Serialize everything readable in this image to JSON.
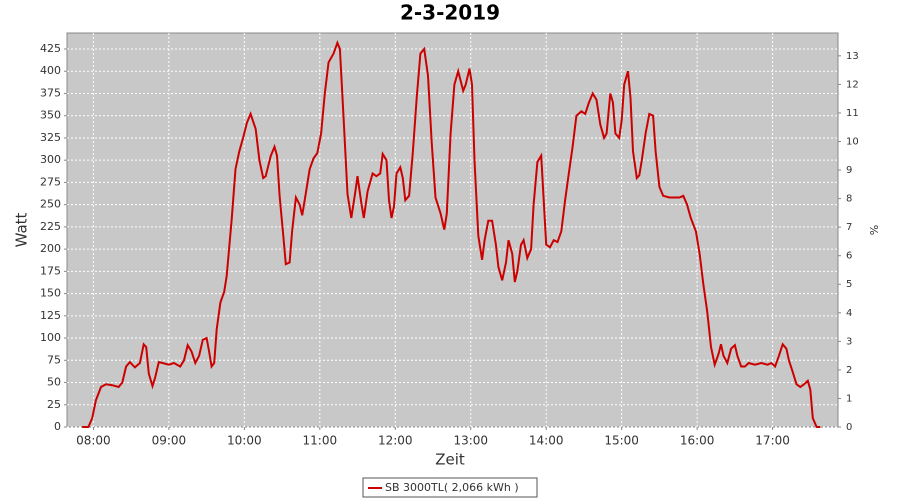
{
  "chart_data": {
    "type": "line",
    "title": "2-3-2019",
    "x_label": "Zeit",
    "y_label": "Watt",
    "y2_label": "%",
    "x": [
      "07:51",
      "07:56",
      "07:59",
      "08:02",
      "08:06",
      "08:10",
      "08:15",
      "08:20",
      "08:23",
      "08:26",
      "08:29",
      "08:33",
      "08:37",
      "08:40",
      "08:42",
      "08:44",
      "08:47",
      "08:49",
      "08:52",
      "08:55",
      "09:00",
      "09:04",
      "09:09",
      "09:12",
      "09:15",
      "09:18",
      "09:21",
      "09:24",
      "09:27",
      "09:30",
      "09:32",
      "09:34",
      "09:36",
      "09:38",
      "09:41",
      "09:44",
      "09:46",
      "09:50",
      "09:53",
      "09:56",
      "09:59",
      "10:02",
      "10:05",
      "10:09",
      "10:12",
      "10:15",
      "10:17",
      "10:21",
      "10:24",
      "10:26",
      "10:28",
      "10:31",
      "10:33",
      "10:36",
      "10:38",
      "10:41",
      "10:44",
      "10:46",
      "10:48",
      "10:52",
      "10:55",
      "10:58",
      "11:01",
      "11:04",
      "11:07",
      "11:11",
      "11:14",
      "11:16",
      "11:19",
      "11:22",
      "11:25",
      "11:28",
      "11:30",
      "11:33",
      "11:35",
      "11:38",
      "11:42",
      "11:45",
      "11:48",
      "11:50",
      "11:53",
      "11:55",
      "11:57",
      "11:59",
      "12:01",
      "12:04",
      "12:06",
      "12:08",
      "12:11",
      "12:14",
      "12:17",
      "12:20",
      "12:23",
      "12:26",
      "12:29",
      "12:32",
      "12:36",
      "12:39",
      "12:41",
      "12:44",
      "12:47",
      "12:50",
      "12:54",
      "12:56",
      "12:59",
      "13:01",
      "13:03",
      "13:06",
      "13:09",
      "13:11",
      "13:14",
      "13:17",
      "13:20",
      "13:22",
      "13:25",
      "13:28",
      "13:30",
      "13:33",
      "13:35",
      "13:37",
      "13:40",
      "13:42",
      "13:45",
      "13:48",
      "13:50",
      "13:53",
      "13:56",
      "13:58",
      "14:00",
      "14:03",
      "14:06",
      "14:09",
      "14:12",
      "14:15",
      "14:18",
      "14:21",
      "14:24",
      "14:28",
      "14:31",
      "14:34",
      "14:37",
      "14:40",
      "14:43",
      "14:46",
      "14:48",
      "14:51",
      "14:53",
      "14:55",
      "14:58",
      "15:00",
      "15:02",
      "15:05",
      "15:07",
      "15:09",
      "15:12",
      "15:14",
      "15:16",
      "15:19",
      "15:22",
      "15:25",
      "15:27",
      "15:30",
      "15:33",
      "15:38",
      "15:43",
      "15:46",
      "15:49",
      "15:52",
      "15:55",
      "15:59",
      "16:02",
      "16:05",
      "16:08",
      "16:11",
      "16:14",
      "16:17",
      "16:19",
      "16:21",
      "16:24",
      "16:27",
      "16:30",
      "16:32",
      "16:35",
      "16:38",
      "16:41",
      "16:46",
      "16:51",
      "16:56",
      "16:59",
      "17:02",
      "17:05",
      "17:08",
      "17:11",
      "17:13",
      "17:16",
      "17:19",
      "17:22",
      "17:25",
      "17:28",
      "17:30",
      "17:32",
      "17:35",
      "17:38"
    ],
    "series": [
      {
        "name": "SB 3000TL( 2,066 kWh )",
        "color": "#cc0000",
        "values": [
          0,
          0,
          10,
          30,
          45,
          48,
          47,
          45,
          50,
          68,
          73,
          67,
          72,
          93,
          90,
          60,
          46,
          55,
          73,
          72,
          70,
          72,
          68,
          75,
          92,
          85,
          72,
          80,
          98,
          100,
          85,
          68,
          72,
          110,
          140,
          152,
          170,
          235,
          290,
          310,
          325,
          342,
          352,
          335,
          300,
          280,
          282,
          305,
          315,
          305,
          260,
          215,
          183,
          185,
          220,
          258,
          250,
          238,
          255,
          290,
          302,
          308,
          330,
          375,
          410,
          420,
          432,
          425,
          345,
          262,
          235,
          262,
          282,
          252,
          235,
          265,
          285,
          282,
          285,
          307,
          300,
          255,
          235,
          248,
          285,
          292,
          280,
          255,
          260,
          310,
          370,
          420,
          425,
          395,
          320,
          258,
          240,
          222,
          240,
          330,
          385,
          400,
          378,
          385,
          403,
          385,
          300,
          215,
          188,
          210,
          232,
          232,
          205,
          180,
          165,
          185,
          210,
          195,
          163,
          175,
          205,
          210,
          190,
          200,
          250,
          298,
          305,
          255,
          205,
          202,
          210,
          208,
          220,
          255,
          285,
          315,
          350,
          355,
          352,
          365,
          375,
          368,
          340,
          325,
          330,
          375,
          365,
          330,
          325,
          345,
          385,
          400,
          370,
          310,
          280,
          283,
          300,
          330,
          352,
          350,
          310,
          270,
          260,
          258,
          258,
          258,
          260,
          250,
          235,
          220,
          195,
          160,
          130,
          90,
          70,
          82,
          93,
          80,
          72,
          88,
          92,
          80,
          68,
          68,
          72,
          70,
          72,
          70,
          72,
          68,
          80,
          93,
          88,
          75,
          62,
          48,
          45,
          48,
          52,
          42,
          10,
          0,
          0
        ]
      }
    ],
    "xlim": [
      "07:39",
      "17:52"
    ],
    "xticks": [
      "08:00",
      "09:00",
      "10:00",
      "11:00",
      "12:00",
      "13:00",
      "14:00",
      "15:00",
      "16:00",
      "17:00"
    ],
    "ylim": [
      0,
      443
    ],
    "yticks": [
      0,
      25,
      50,
      75,
      100,
      125,
      150,
      175,
      200,
      225,
      250,
      275,
      300,
      325,
      350,
      375,
      400,
      425
    ],
    "y2lim": [
      0,
      13.8
    ],
    "y2ticks": [
      0,
      1,
      2,
      3,
      4,
      5,
      6,
      7,
      8,
      9,
      10,
      11,
      12,
      13
    ],
    "grid": true
  }
}
